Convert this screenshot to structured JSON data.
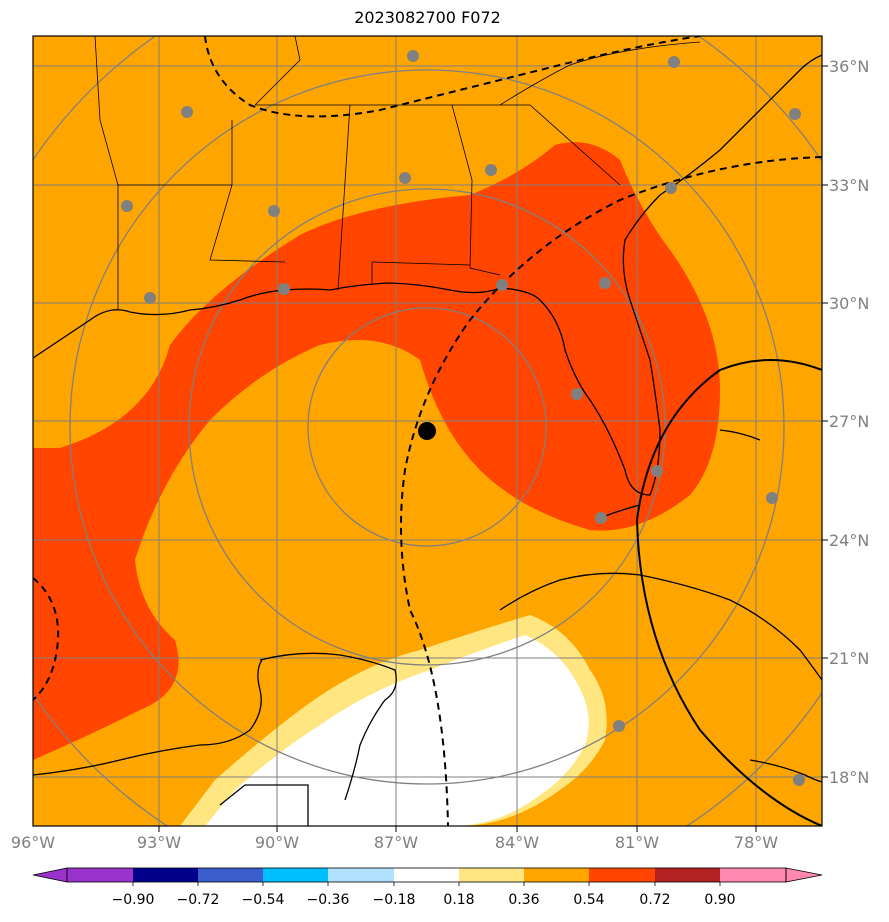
{
  "title": "2023082700 F072",
  "lon_labels": [
    "96°W",
    "93°W",
    "90°W",
    "87°W",
    "84°W",
    "81°W",
    "78°W"
  ],
  "lat_labels": [
    "36°N",
    "33°N",
    "30°N",
    "27°N",
    "24°N",
    "21°N",
    "18°N"
  ],
  "colorbar": {
    "ticks": [
      "−0.90",
      "−0.72",
      "−0.54",
      "−0.36",
      "−0.18",
      "0.18",
      "0.36",
      "0.54",
      "0.72",
      "0.90"
    ],
    "colors": [
      "#9933cc",
      "#00008b",
      "#3a5fcd",
      "#00bfff",
      "#b0e2ff",
      "#ffffff",
      "#ffe680",
      "#ffa500",
      "#ff4500",
      "#b22222",
      "#ff88b0"
    ]
  },
  "fill_colors": {
    "base": "#ffa500",
    "band": "#ff4500",
    "pale": "#ffe680",
    "low": "#ffffff"
  },
  "center_marker": {
    "lon": -86.3,
    "lat": 26.8
  }
}
